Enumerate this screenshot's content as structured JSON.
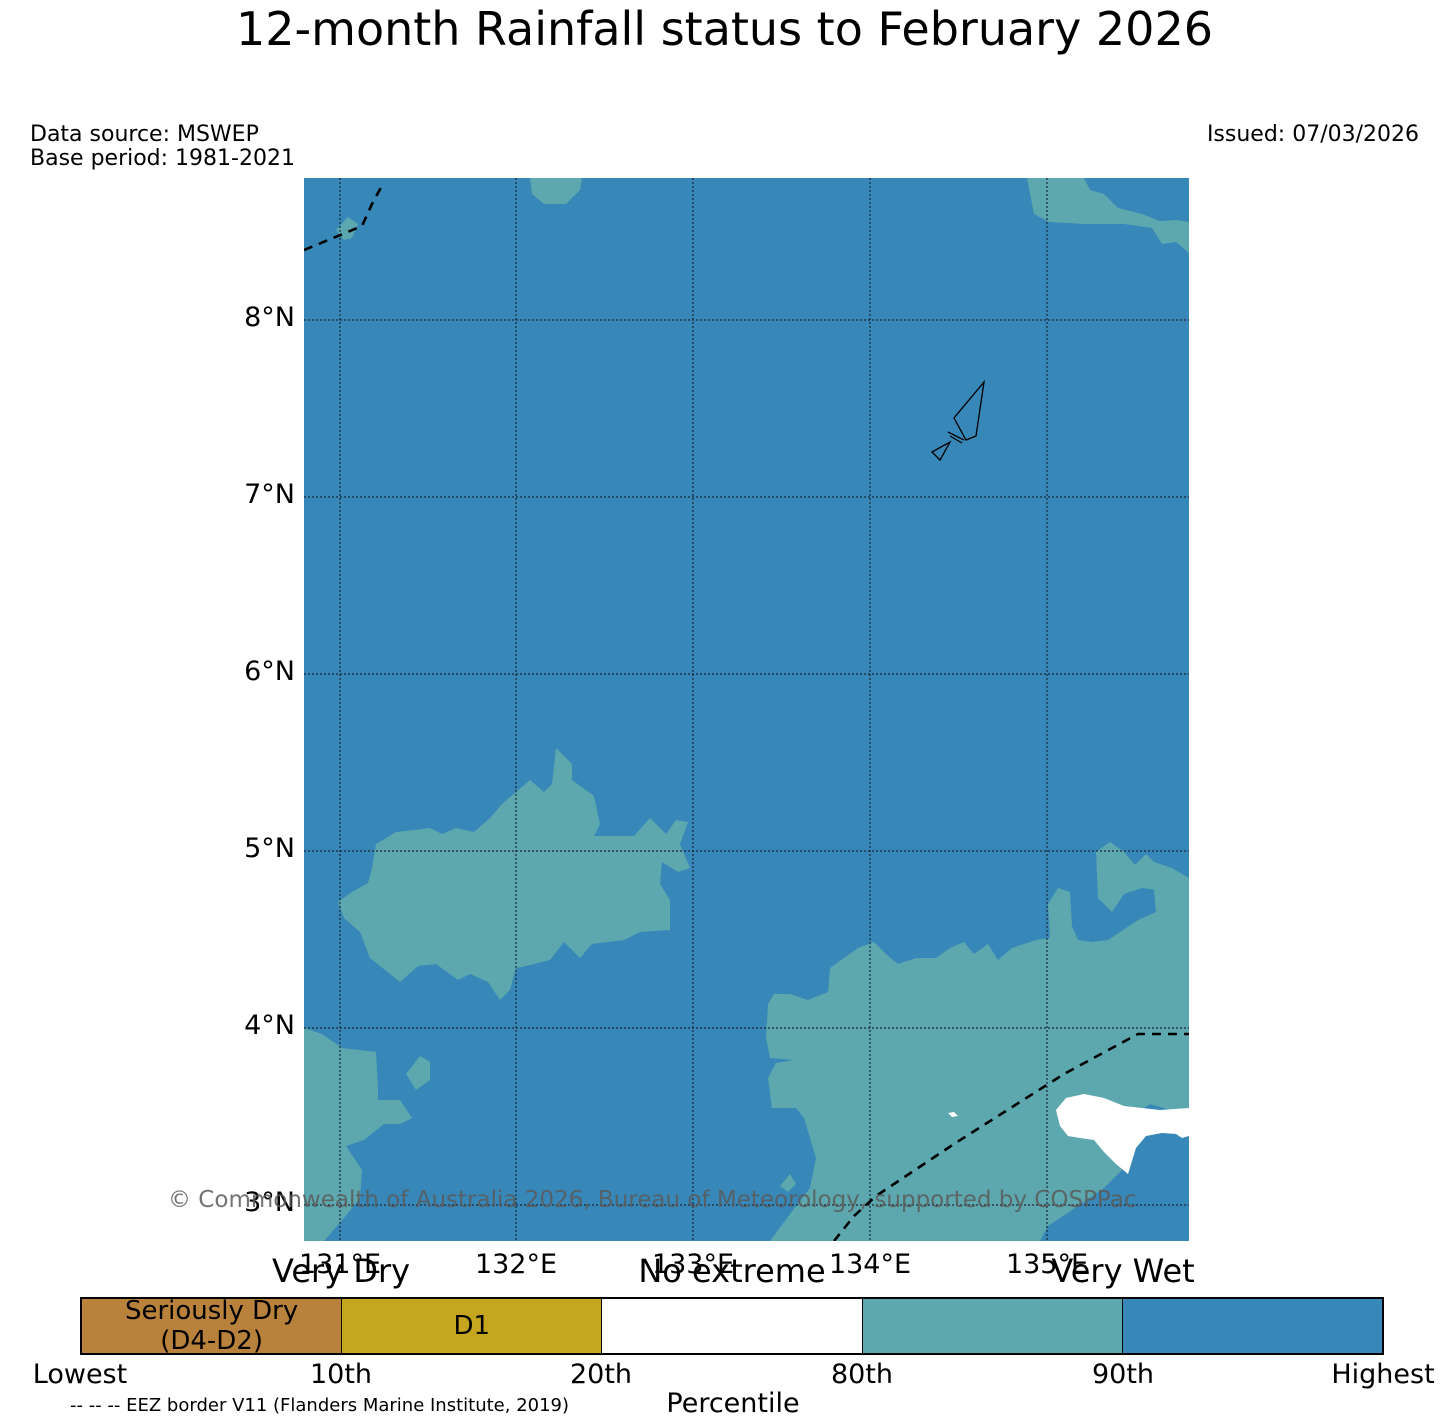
{
  "header": {
    "title": "12-month Rainfall status to February 2026",
    "data_source": "Data source: MSWEP",
    "base_period": "Base period: 1981-2021",
    "issued": "Issued: 07/03/2026"
  },
  "map": {
    "lat_labels": [
      "8°N",
      "7°N",
      "6°N",
      "5°N",
      "4°N",
      "3°N"
    ],
    "lon_labels": [
      "131°E",
      "132°E",
      "133°E",
      "134°E",
      "135°E"
    ],
    "colors": {
      "very_wet": "#3787b8",
      "wet_80_90": "#5ca8ae",
      "no_extreme": "#ffffff"
    },
    "copyright": "© Commonwealth of Australia 2026, Bureau of Meteorology, supported by COSPPac"
  },
  "legend": {
    "category_labels": [
      "Very Dry",
      "No extreme",
      "Very Wet"
    ],
    "segments": [
      {
        "label": "Seriously Dry\n(D4-D2)",
        "color": "#b8813c"
      },
      {
        "label": "D1",
        "color": "#c6a51f"
      },
      {
        "label": "",
        "color": "#ffffff"
      },
      {
        "label": "",
        "color": "#5ca8ae"
      },
      {
        "label": "",
        "color": "#3787b8"
      }
    ],
    "percentiles": [
      "Lowest",
      "10th",
      "20th",
      "80th",
      "90th",
      "Highest"
    ],
    "axis_title": "Percentile",
    "eez_note": "-- -- -- EEZ border V11 (Flanders Marine Institute, 2019)"
  }
}
